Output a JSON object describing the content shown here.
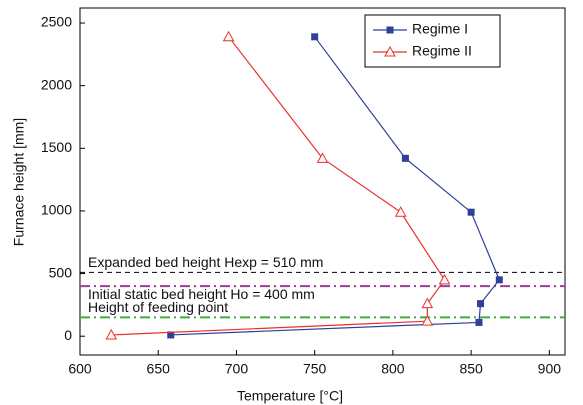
{
  "chart_data": {
    "type": "line",
    "x_label": "Temperature [°C]",
    "y_label": "Furnace height [mm]",
    "xlim": [
      600,
      910
    ],
    "ylim": [
      -150,
      2620
    ],
    "xticks": [
      600,
      650,
      700,
      750,
      800,
      850,
      900
    ],
    "yticks": [
      0,
      500,
      1000,
      1500,
      2000,
      2500
    ],
    "legend": "upper right",
    "series": [
      {
        "name": "Regime I",
        "color": "#2f3f9a",
        "marker": "square",
        "x": [
          750,
          808,
          850,
          868,
          856,
          855,
          658
        ],
        "values": [
          2390,
          1420,
          990,
          450,
          260,
          110,
          10
        ]
      },
      {
        "name": "Regime II",
        "color": "#e8312a",
        "marker": "triangle",
        "x": [
          695,
          755,
          805,
          833,
          822,
          822,
          620
        ],
        "values": [
          2390,
          1420,
          990,
          450,
          260,
          120,
          10
        ]
      }
    ],
    "reference_lines": [
      {
        "value": 510,
        "label": "Expanded bed height Hexp = 510 mm",
        "color": "#000000",
        "style": "dash"
      },
      {
        "value": 400,
        "label": "Initial static bed height Ho = 400 mm",
        "color": "#9b3c9b",
        "style": "dashdot"
      },
      {
        "value": 150,
        "label": "Height of feeding point",
        "color": "#3fae3f",
        "style": "dashdot"
      }
    ]
  }
}
